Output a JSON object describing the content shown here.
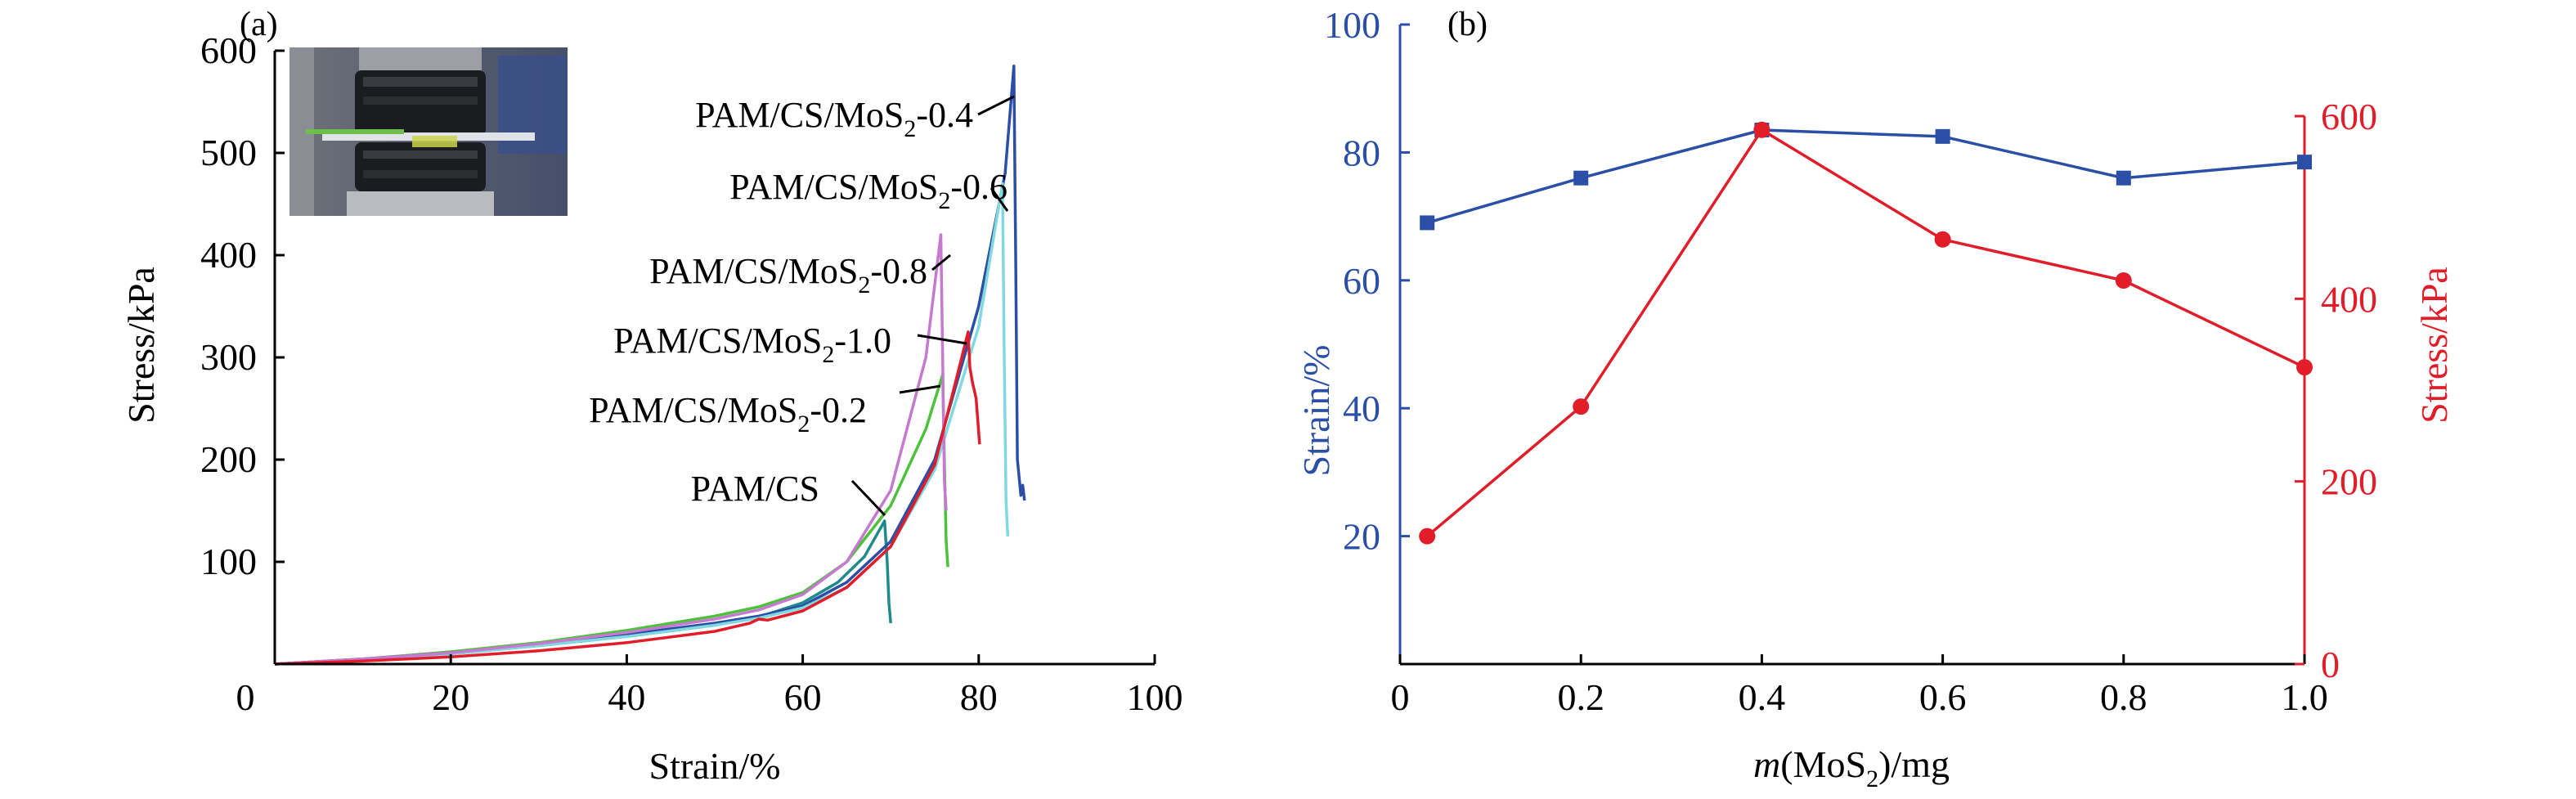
{
  "colors": {
    "blue": "#2b4fa6",
    "red": "#e11d2a",
    "axis": "#000000"
  },
  "chart_data": [
    {
      "panel_label": "(a)",
      "type": "line",
      "xlabel": "Strain/%",
      "ylabel": "Stress/kPa",
      "xlim": [
        0,
        100
      ],
      "ylim": [
        0,
        600
      ],
      "x_ticks": [
        0,
        20,
        40,
        60,
        80,
        100
      ],
      "y_ticks": [
        100,
        200,
        300,
        400,
        500,
        600
      ],
      "inset": "photo of compression test fixture (upper-left)",
      "series": [
        {
          "name": "PAM/CS",
          "color": "#1f8a8a",
          "x": [
            0,
            10,
            20,
            30,
            40,
            50,
            55,
            60,
            64,
            67,
            69.3,
            69.6,
            69.8,
            70.0
          ],
          "y": [
            0,
            4,
            10,
            18,
            27,
            38,
            46,
            60,
            80,
            105,
            140,
            100,
            60,
            40
          ]
        },
        {
          "name": "PAM/CS/MoS2-0.2",
          "color": "#4cc23a",
          "x": [
            0,
            10,
            20,
            30,
            40,
            50,
            55,
            60,
            65,
            70,
            74,
            75.9,
            76.1,
            76.3,
            76.5
          ],
          "y": [
            0,
            5,
            12,
            21,
            33,
            47,
            56,
            70,
            100,
            155,
            230,
            283,
            200,
            120,
            95
          ]
        },
        {
          "name": "PAM/CS/MoS2-0.4",
          "color": "#2b4fa6",
          "x": [
            0,
            10,
            20,
            30,
            40,
            50,
            55,
            60,
            65,
            70,
            75,
            80,
            83.0,
            84.0,
            84.2,
            84.4,
            84.8,
            85.0,
            85.2
          ],
          "y": [
            0,
            5,
            11,
            19,
            29,
            40,
            47,
            57,
            80,
            120,
            200,
            350,
            480,
            585,
            400,
            200,
            165,
            175,
            160
          ]
        },
        {
          "name": "PAM/CS/MoS2-0.6",
          "color": "#7fd9df",
          "x": [
            0,
            10,
            20,
            30,
            40,
            50,
            55,
            60,
            65,
            70,
            75,
            80,
            82.7,
            82.9,
            83.1,
            83.3
          ],
          "y": [
            0,
            4,
            10,
            18,
            27,
            38,
            45,
            55,
            75,
            115,
            190,
            330,
            470,
            300,
            160,
            125
          ]
        },
        {
          "name": "PAM/CS/MoS2-0.8",
          "color": "#c57ad0",
          "x": [
            0,
            10,
            20,
            30,
            40,
            50,
            55,
            60,
            65,
            70,
            74,
            75.7,
            75.9,
            76.1,
            76.3
          ],
          "y": [
            0,
            5,
            11,
            20,
            31,
            44,
            53,
            68,
            100,
            170,
            300,
            420,
            300,
            180,
            150
          ]
        },
        {
          "name": "PAM/CS/MoS2-1.0",
          "color": "#e11d2a",
          "x": [
            0,
            10,
            20,
            30,
            40,
            50,
            54,
            55,
            56,
            60,
            65,
            70,
            75,
            78.8,
            79.0,
            79.3,
            79.7,
            80.1
          ],
          "y": [
            0,
            3,
            7,
            13,
            21,
            32,
            40,
            44,
            43,
            52,
            75,
            115,
            195,
            325,
            290,
            275,
            260,
            215
          ]
        }
      ],
      "annotations": [
        {
          "base": "PAM/CS/MoS",
          "sub": "2",
          "tail": "-0.4",
          "series": "PAM/CS/MoS2-0.4"
        },
        {
          "base": "PAM/CS/MoS",
          "sub": "2",
          "tail": "-0.6",
          "series": "PAM/CS/MoS2-0.6"
        },
        {
          "base": "PAM/CS/MoS",
          "sub": "2",
          "tail": "-0.8",
          "series": "PAM/CS/MoS2-0.8"
        },
        {
          "base": "PAM/CS/MoS",
          "sub": "2",
          "tail": "-1.0",
          "series": "PAM/CS/MoS2-1.0"
        },
        {
          "base": "PAM/CS/MoS",
          "sub": "2",
          "tail": "-0.2",
          "series": "PAM/CS/MoS2-0.2"
        },
        {
          "base": "PAM/CS",
          "sub": "",
          "tail": "",
          "series": "PAM/CS"
        }
      ]
    },
    {
      "panel_label": "(b)",
      "type": "line",
      "xlabel_prefix": "m",
      "xlabel_main": "(MoS",
      "xlabel_sub": "2",
      "xlabel_tail": ")/mg",
      "ylabel_left": "Strain/%",
      "ylabel_right": "Stress/kPa",
      "xlim": [
        0,
        1.0
      ],
      "ylim_left": [
        0,
        100
      ],
      "ylim_right": [
        0,
        600
      ],
      "x_ticks": [
        "0",
        "0.2",
        "0.4",
        "0.6",
        "0.8",
        "1.0"
      ],
      "y_ticks_left": [
        20,
        40,
        60,
        80,
        100
      ],
      "y_ticks_right": [
        0,
        200,
        400,
        600
      ],
      "grid": false,
      "series": [
        {
          "name": "Strain",
          "axis": "left",
          "color": "#2b4fa6",
          "marker": "square",
          "x": [
            0.03,
            0.2,
            0.4,
            0.6,
            0.8,
            1.0
          ],
          "y": [
            69,
            76,
            83.5,
            82.5,
            76,
            78.5
          ]
        },
        {
          "name": "Stress",
          "axis": "right",
          "color": "#e11d2a",
          "marker": "circle",
          "x": [
            0.03,
            0.2,
            0.4,
            0.6,
            0.8,
            1.0
          ],
          "y": [
            140,
            282,
            585,
            465,
            420,
            325
          ]
        }
      ]
    }
  ]
}
